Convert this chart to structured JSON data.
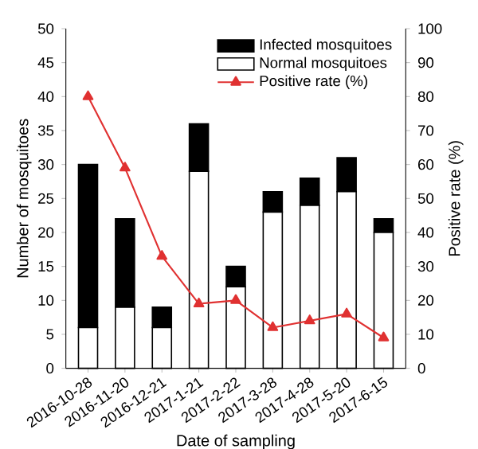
{
  "chart_data": {
    "type": "bar",
    "stacked": true,
    "xlabel": "Date of sampling",
    "ylabel": "Number of mosquitoes",
    "y2label": "Positive rate (%)",
    "categories": [
      "2016-10-28",
      "2016-11-20",
      "2016-12-21",
      "2017-1-21",
      "2017-2-22",
      "2017-3-28",
      "2017-4-28",
      "2017-5-20",
      "2017-6-15"
    ],
    "series": [
      {
        "name": "Normal mosquitoes",
        "color": "#ffffff",
        "values": [
          6,
          9,
          6,
          29,
          12,
          23,
          24,
          26,
          20
        ]
      },
      {
        "name": "Infected mosquitoes",
        "color": "#000000",
        "values": [
          24,
          13,
          3,
          7,
          3,
          3,
          4,
          5,
          2
        ]
      },
      {
        "name": "Positive rate (%)",
        "type": "line",
        "axis": "y2",
        "color": "#e03131",
        "values": [
          80,
          59,
          33,
          19,
          20,
          12,
          14,
          16,
          9
        ]
      }
    ],
    "ylim": [
      0,
      50
    ],
    "yticks": [
      0,
      5,
      10,
      15,
      20,
      25,
      30,
      35,
      40,
      45,
      50
    ],
    "y2lim": [
      0,
      100
    ],
    "y2ticks": [
      0,
      10,
      20,
      30,
      40,
      50,
      60,
      70,
      80,
      90,
      100
    ],
    "marker": "triangle",
    "line_style": "solid",
    "grid": false,
    "legend": "top right"
  }
}
